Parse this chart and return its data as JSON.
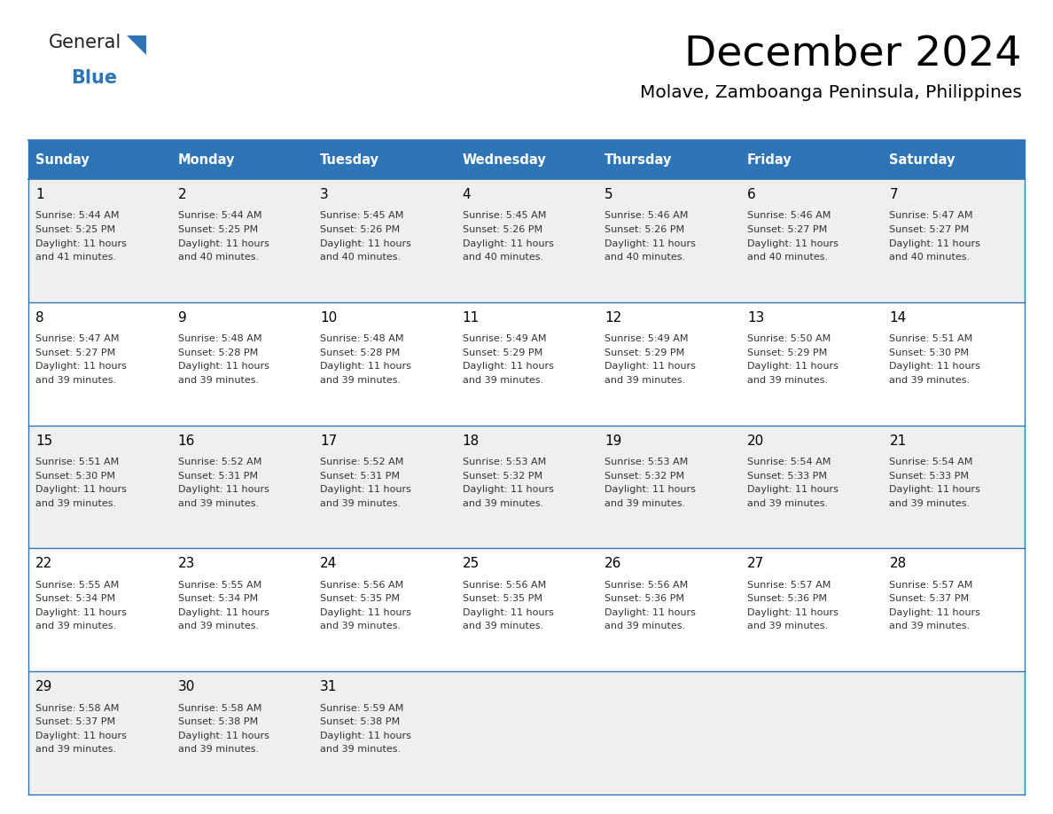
{
  "title": "December 2024",
  "subtitle": "Molave, Zamboanga Peninsula, Philippines",
  "header_color": "#2E75B6",
  "header_text_color": "#FFFFFF",
  "title_color": "#000000",
  "subtitle_color": "#000000",
  "day_names": [
    "Sunday",
    "Monday",
    "Tuesday",
    "Wednesday",
    "Thursday",
    "Friday",
    "Saturday"
  ],
  "row_bg_colors": [
    "#EFEFEF",
    "#FFFFFF"
  ],
  "cell_border_color": "#2E75B6",
  "days": [
    {
      "date": 1,
      "col": 0,
      "row": 0,
      "sunrise": "5:44 AM",
      "sunset": "5:25 PM",
      "daylight_minutes": "41"
    },
    {
      "date": 2,
      "col": 1,
      "row": 0,
      "sunrise": "5:44 AM",
      "sunset": "5:25 PM",
      "daylight_minutes": "40"
    },
    {
      "date": 3,
      "col": 2,
      "row": 0,
      "sunrise": "5:45 AM",
      "sunset": "5:26 PM",
      "daylight_minutes": "40"
    },
    {
      "date": 4,
      "col": 3,
      "row": 0,
      "sunrise": "5:45 AM",
      "sunset": "5:26 PM",
      "daylight_minutes": "40"
    },
    {
      "date": 5,
      "col": 4,
      "row": 0,
      "sunrise": "5:46 AM",
      "sunset": "5:26 PM",
      "daylight_minutes": "40"
    },
    {
      "date": 6,
      "col": 5,
      "row": 0,
      "sunrise": "5:46 AM",
      "sunset": "5:27 PM",
      "daylight_minutes": "40"
    },
    {
      "date": 7,
      "col": 6,
      "row": 0,
      "sunrise": "5:47 AM",
      "sunset": "5:27 PM",
      "daylight_minutes": "40"
    },
    {
      "date": 8,
      "col": 0,
      "row": 1,
      "sunrise": "5:47 AM",
      "sunset": "5:27 PM",
      "daylight_minutes": "39"
    },
    {
      "date": 9,
      "col": 1,
      "row": 1,
      "sunrise": "5:48 AM",
      "sunset": "5:28 PM",
      "daylight_minutes": "39"
    },
    {
      "date": 10,
      "col": 2,
      "row": 1,
      "sunrise": "5:48 AM",
      "sunset": "5:28 PM",
      "daylight_minutes": "39"
    },
    {
      "date": 11,
      "col": 3,
      "row": 1,
      "sunrise": "5:49 AM",
      "sunset": "5:29 PM",
      "daylight_minutes": "39"
    },
    {
      "date": 12,
      "col": 4,
      "row": 1,
      "sunrise": "5:49 AM",
      "sunset": "5:29 PM",
      "daylight_minutes": "39"
    },
    {
      "date": 13,
      "col": 5,
      "row": 1,
      "sunrise": "5:50 AM",
      "sunset": "5:29 PM",
      "daylight_minutes": "39"
    },
    {
      "date": 14,
      "col": 6,
      "row": 1,
      "sunrise": "5:51 AM",
      "sunset": "5:30 PM",
      "daylight_minutes": "39"
    },
    {
      "date": 15,
      "col": 0,
      "row": 2,
      "sunrise": "5:51 AM",
      "sunset": "5:30 PM",
      "daylight_minutes": "39"
    },
    {
      "date": 16,
      "col": 1,
      "row": 2,
      "sunrise": "5:52 AM",
      "sunset": "5:31 PM",
      "daylight_minutes": "39"
    },
    {
      "date": 17,
      "col": 2,
      "row": 2,
      "sunrise": "5:52 AM",
      "sunset": "5:31 PM",
      "daylight_minutes": "39"
    },
    {
      "date": 18,
      "col": 3,
      "row": 2,
      "sunrise": "5:53 AM",
      "sunset": "5:32 PM",
      "daylight_minutes": "39"
    },
    {
      "date": 19,
      "col": 4,
      "row": 2,
      "sunrise": "5:53 AM",
      "sunset": "5:32 PM",
      "daylight_minutes": "39"
    },
    {
      "date": 20,
      "col": 5,
      "row": 2,
      "sunrise": "5:54 AM",
      "sunset": "5:33 PM",
      "daylight_minutes": "39"
    },
    {
      "date": 21,
      "col": 6,
      "row": 2,
      "sunrise": "5:54 AM",
      "sunset": "5:33 PM",
      "daylight_minutes": "39"
    },
    {
      "date": 22,
      "col": 0,
      "row": 3,
      "sunrise": "5:55 AM",
      "sunset": "5:34 PM",
      "daylight_minutes": "39"
    },
    {
      "date": 23,
      "col": 1,
      "row": 3,
      "sunrise": "5:55 AM",
      "sunset": "5:34 PM",
      "daylight_minutes": "39"
    },
    {
      "date": 24,
      "col": 2,
      "row": 3,
      "sunrise": "5:56 AM",
      "sunset": "5:35 PM",
      "daylight_minutes": "39"
    },
    {
      "date": 25,
      "col": 3,
      "row": 3,
      "sunrise": "5:56 AM",
      "sunset": "5:35 PM",
      "daylight_minutes": "39"
    },
    {
      "date": 26,
      "col": 4,
      "row": 3,
      "sunrise": "5:56 AM",
      "sunset": "5:36 PM",
      "daylight_minutes": "39"
    },
    {
      "date": 27,
      "col": 5,
      "row": 3,
      "sunrise": "5:57 AM",
      "sunset": "5:36 PM",
      "daylight_minutes": "39"
    },
    {
      "date": 28,
      "col": 6,
      "row": 3,
      "sunrise": "5:57 AM",
      "sunset": "5:37 PM",
      "daylight_minutes": "39"
    },
    {
      "date": 29,
      "col": 0,
      "row": 4,
      "sunrise": "5:58 AM",
      "sunset": "5:37 PM",
      "daylight_minutes": "39"
    },
    {
      "date": 30,
      "col": 1,
      "row": 4,
      "sunrise": "5:58 AM",
      "sunset": "5:38 PM",
      "daylight_minutes": "39"
    },
    {
      "date": 31,
      "col": 2,
      "row": 4,
      "sunrise": "5:59 AM",
      "sunset": "5:38 PM",
      "daylight_minutes": "39"
    }
  ],
  "num_rows": 5,
  "logo_general_color": "#222222",
  "logo_blue_color": "#2E75B6",
  "fig_width": 11.88,
  "fig_height": 9.18,
  "dpi": 100
}
